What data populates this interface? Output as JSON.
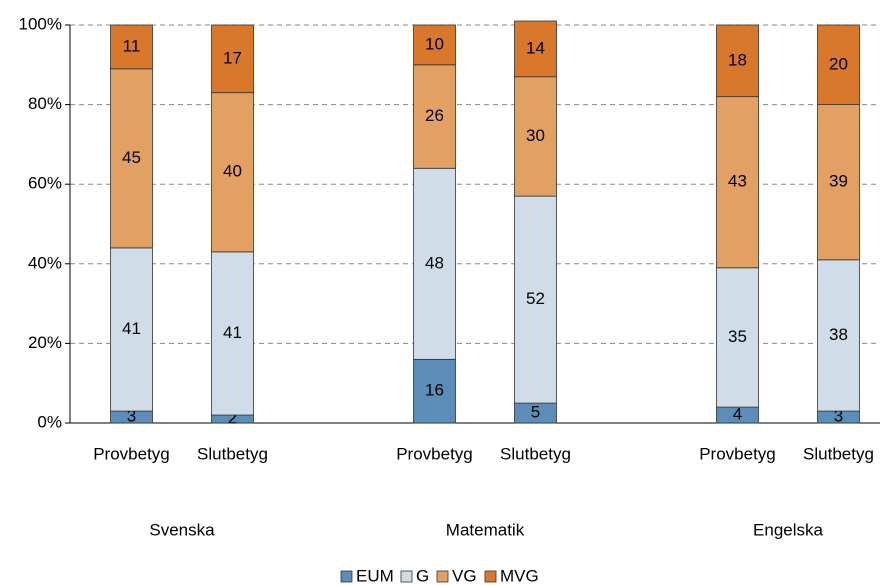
{
  "chart_data": {
    "type": "stacked_bar",
    "categories": [
      "Provbetyg",
      "Slutbetyg",
      "Provbetyg",
      "Slutbetyg",
      "Provbetyg",
      "Slutbetyg"
    ],
    "groups": [
      "Svenska",
      "Matematik",
      "Engelska"
    ],
    "series": [
      {
        "name": "EUM",
        "color": "#5b8db8",
        "values": [
          3,
          2,
          16,
          5,
          4,
          3
        ]
      },
      {
        "name": "G",
        "color": "#d0dde8",
        "values": [
          41,
          41,
          48,
          52,
          35,
          38
        ]
      },
      {
        "name": "VG",
        "color": "#e2a062",
        "values": [
          45,
          40,
          26,
          30,
          43,
          39
        ]
      },
      {
        "name": "MVG",
        "color": "#d9782b",
        "values": [
          11,
          17,
          10,
          14,
          18,
          20
        ]
      }
    ],
    "ylim": [
      0,
      100
    ],
    "yticks": [
      {
        "value": 0,
        "label": "0%"
      },
      {
        "value": 20,
        "label": "20%"
      },
      {
        "value": 40,
        "label": "40%"
      },
      {
        "value": 60,
        "label": "60%"
      },
      {
        "value": 80,
        "label": "80%"
      },
      {
        "value": 100,
        "label": "100%"
      }
    ],
    "grid": true,
    "legend": "bottom"
  }
}
